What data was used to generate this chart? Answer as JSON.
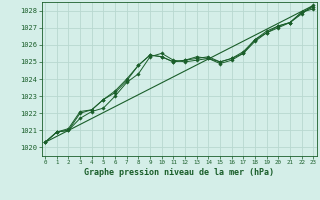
{
  "title": "Graphe pression niveau de la mer (hPa)",
  "xlabel_ticks": [
    0,
    1,
    2,
    3,
    4,
    5,
    6,
    7,
    8,
    9,
    10,
    11,
    12,
    13,
    14,
    15,
    16,
    17,
    18,
    19,
    20,
    21,
    22,
    23
  ],
  "ylim": [
    1019.5,
    1028.5
  ],
  "xlim": [
    -0.3,
    23.3
  ],
  "yticks": [
    1020,
    1021,
    1022,
    1023,
    1024,
    1025,
    1026,
    1027,
    1028
  ],
  "bg_color": "#d4eee8",
  "grid_color": "#b8d8d0",
  "line_color": "#1a5e2a",
  "marker_color": "#1a5e2a",
  "series1": [
    1020.3,
    1020.9,
    1021.0,
    1021.7,
    1022.1,
    1022.3,
    1023.0,
    1023.8,
    1024.3,
    1025.3,
    1025.5,
    1025.1,
    1025.0,
    1025.1,
    1025.2,
    1024.9,
    1025.1,
    1025.5,
    1026.2,
    1026.7,
    1027.0,
    1027.3,
    1027.8,
    1028.3
  ],
  "series2": [
    1020.3,
    1020.9,
    1021.0,
    1022.0,
    1022.2,
    1022.8,
    1023.2,
    1023.9,
    1024.8,
    1025.4,
    1025.3,
    1025.0,
    1025.1,
    1025.3,
    1025.2,
    1025.0,
    1025.2,
    1025.5,
    1026.3,
    1026.8,
    1027.1,
    1027.3,
    1027.9,
    1028.2
  ],
  "series3": [
    1020.3,
    1020.9,
    1021.1,
    1022.1,
    1022.2,
    1022.8,
    1023.3,
    1024.0,
    1024.8,
    1025.4,
    1025.3,
    1025.0,
    1025.1,
    1025.2,
    1025.3,
    1025.0,
    1025.2,
    1025.6,
    1026.3,
    1026.7,
    1027.1,
    1027.3,
    1027.9,
    1028.1
  ],
  "trend_line": [
    [
      0,
      23
    ],
    [
      1020.3,
      1028.3
    ]
  ]
}
